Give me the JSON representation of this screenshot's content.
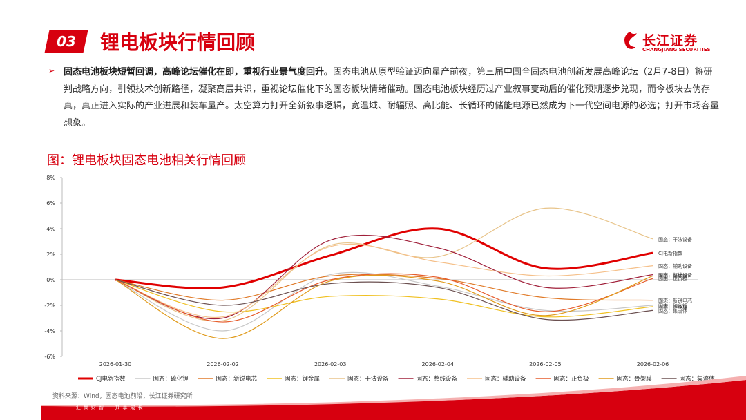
{
  "header": {
    "number": "03",
    "title": "锂电板块行情回顾",
    "logo": "长江证券",
    "logo_en": "CHANGJIANG SECURITIES"
  },
  "bullet": {
    "lead": "固态电池板块短暂回调，高峰论坛催化在即，重视行业景气度回升。",
    "body": "固态电池从原型验证迈向量产前夜，第三届中国全固态电池创新发展高峰论坛（2月7-8日）将研判战略方向，引领技术创新路径，凝聚高层共识，重视论坛催化下的固态板块情绪催动。固态电池板块经历过产业叙事变动后的催化预期逐步兑现，而今板块去伪存真，真正进入实际的产业进展和装车量产。太空算力打开全新叙事逻辑，宽温域、耐辐照、高比能、长循环的储能电源已然成为下一代空间电源的必选；打开市场容量想象。"
  },
  "chart_data": {
    "type": "line",
    "title": "图：锂电板块固态电池相关行情回顾",
    "categories": [
      "2026-01-30",
      "2026-02-02",
      "2026-02-03",
      "2026-02-04",
      "2026-02-05",
      "2026-02-06"
    ],
    "ylim": [
      -6,
      8
    ],
    "yticks": [
      {
        "value": -6,
        "label": "-6%"
      },
      {
        "value": -4,
        "label": "-4%"
      },
      {
        "value": -2,
        "label": "-2%"
      },
      {
        "value": 0,
        "label": "0%"
      },
      {
        "value": 2,
        "label": "2%"
      },
      {
        "value": 4,
        "label": "4%"
      },
      {
        "value": 6,
        "label": "6%"
      },
      {
        "value": 8,
        "label": "8%"
      }
    ],
    "series": [
      {
        "name": "CJ电新指数",
        "color": "#e00000",
        "values": [
          0,
          -0.6,
          1.9,
          4.0,
          0.9,
          2.1
        ]
      },
      {
        "name": "固态：硫化锂",
        "color": "#c8c8c8",
        "values": [
          0,
          -4.0,
          0.4,
          -0.5,
          -2.4,
          -2.0
        ]
      },
      {
        "name": "固态：新锐电芯",
        "color": "#e07a28",
        "values": [
          0,
          -1.6,
          0.3,
          0.1,
          -1.4,
          -1.6
        ]
      },
      {
        "name": "固态：锂金属",
        "color": "#f0c020",
        "values": [
          0,
          -2.5,
          -1.3,
          -1.5,
          -2.9,
          -2.1
        ]
      },
      {
        "name": "固态：干法设备",
        "color": "#e8c48a",
        "values": [
          0,
          -3.2,
          2.7,
          1.8,
          5.6,
          3.2
        ]
      },
      {
        "name": "固态：整线设备",
        "color": "#a0203a",
        "values": [
          0,
          -3.0,
          3.1,
          2.5,
          -0.6,
          0.4
        ]
      },
      {
        "name": "固态：辅助设备",
        "color": "#f5c08a",
        "values": [
          0,
          -2.9,
          2.6,
          1.4,
          0.3,
          1.1
        ]
      },
      {
        "name": "固态：正负极",
        "color": "#e65c2c",
        "values": [
          0,
          -3.3,
          0.0,
          0.2,
          -2.5,
          0.1
        ]
      },
      {
        "name": "固态：骨架膜",
        "color": "#e09a1a",
        "values": [
          0,
          -4.6,
          -0.1,
          -0.1,
          -2.8,
          0.3
        ]
      },
      {
        "name": "固态：集流体",
        "color": "#6b5050",
        "values": [
          0,
          -2.0,
          -0.3,
          -0.6,
          -3.1,
          -2.4
        ]
      }
    ],
    "legend": "bottom",
    "grid": false
  },
  "source": "资料来源：Wind，固态电池前沿，长江证券研究所",
  "footer": {
    "left": "汇聚财智",
    "right": "共享成长"
  }
}
